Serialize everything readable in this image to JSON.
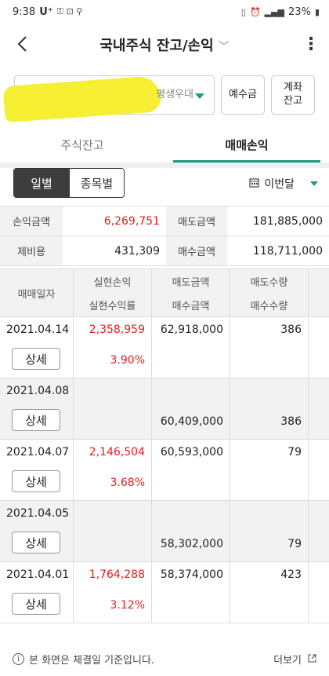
{
  "status_bar": {
    "time": "9:38",
    "carrier": "U⁺",
    "battery": "23%"
  },
  "header": {
    "title": "국내주식 잔고/손익"
  },
  "account": {
    "type": "평생우대",
    "deposit_label": "예수금",
    "transfer_label": "계좌\n잔고"
  },
  "tabs": [
    {
      "label": "주식잔고",
      "active": false
    },
    {
      "label": "매매손익",
      "active": true
    }
  ],
  "filter": {
    "segments": [
      {
        "label": "일별",
        "active": true
      },
      {
        "label": "종목별",
        "active": false
      }
    ],
    "period": "이번달"
  },
  "summary": {
    "rows": [
      {
        "label1": "손익금액",
        "value1": "6,269,751",
        "label2": "매도금액",
        "value2": "181,885,000"
      },
      {
        "label1": "제비용",
        "value1": "431,309",
        "label2": "매수금액",
        "value2": "118,711,000"
      }
    ]
  },
  "table": {
    "headers": {
      "date": "매매일자",
      "realized_pl": "실현손익",
      "realized_rate": "실현수익률",
      "sell_amount": "매도금액",
      "buy_amount": "매수금액",
      "sell_qty": "매도수량",
      "buy_qty": "매수수량"
    },
    "detail_label": "상세",
    "rows": [
      {
        "date": "2021.04.14",
        "pl": "2,358,959",
        "rate": "3.90%",
        "sell_amt": "62,918,000",
        "buy_amt": "",
        "sell_qty": "386",
        "buy_qty": ""
      },
      {
        "date": "2021.04.08",
        "pl": "",
        "rate": "",
        "sell_amt": "",
        "buy_amt": "60,409,000",
        "sell_qty": "",
        "buy_qty": "386"
      },
      {
        "date": "2021.04.07",
        "pl": "2,146,504",
        "rate": "3.68%",
        "sell_amt": "60,593,000",
        "buy_amt": "",
        "sell_qty": "79",
        "buy_qty": ""
      },
      {
        "date": "2021.04.05",
        "pl": "",
        "rate": "",
        "sell_amt": "",
        "buy_amt": "58,302,000",
        "sell_qty": "",
        "buy_qty": "79"
      },
      {
        "date": "2021.04.01",
        "pl": "1,764,288",
        "rate": "3.12%",
        "sell_amt": "58,374,000",
        "buy_amt": "",
        "sell_qty": "423",
        "buy_qty": ""
      }
    ]
  },
  "footer": {
    "notice": "본 화면은 체결일 기준입니다.",
    "more_label": "더보기"
  },
  "colors": {
    "accent": "#1a9e7d",
    "profit": "#e02020"
  }
}
